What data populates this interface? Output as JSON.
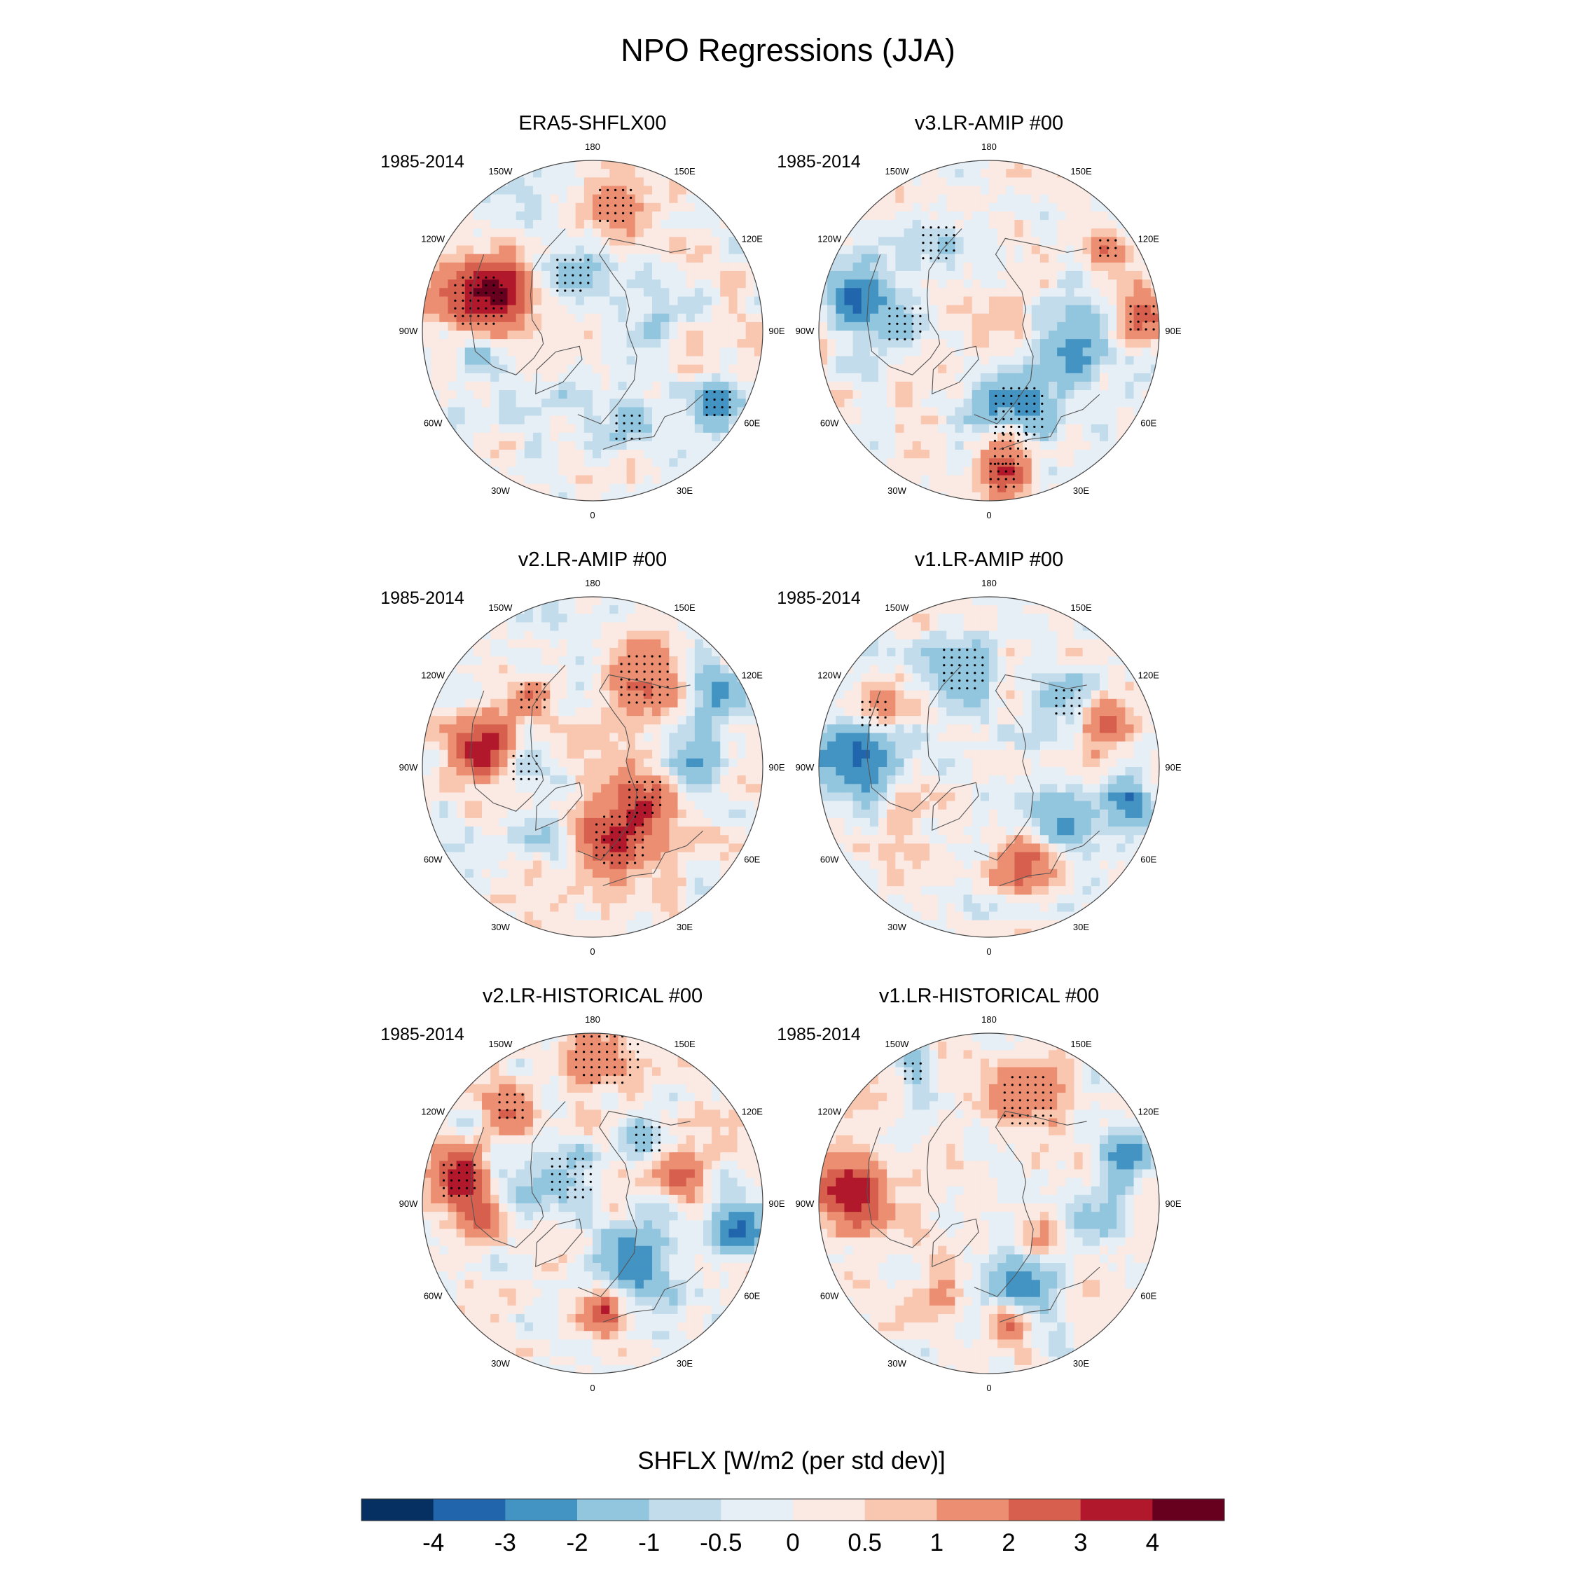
{
  "title": "NPO Regressions (JJA)",
  "colors": {
    "levels": [
      "#053061",
      "#2166ac",
      "#4393c3",
      "#92c5de",
      "#c3dceb",
      "#e6eff6",
      "#fbe9e3",
      "#f9c6b0",
      "#eb8e71",
      "#d6604d",
      "#b2182b",
      "#67001f"
    ],
    "coast": "#555555",
    "rim": "#444444",
    "stipple": "#000000"
  },
  "chart_data": {
    "type": "polar-map-panels",
    "variable_label": "SHFLX [W/m2 (per std dev)]",
    "colorbar": {
      "boundaries": [
        -4,
        -3,
        -2,
        -1,
        -0.5,
        0,
        0.5,
        1,
        2,
        3,
        4
      ],
      "tick_labels": [
        "-4",
        "-3",
        "-2",
        "-1",
        "-0.5",
        "0",
        "0.5",
        "1",
        "2",
        "3",
        "4"
      ]
    },
    "longitude_labels": [
      "180",
      "150E",
      "120E",
      "90E",
      "60E",
      "30E",
      "0",
      "30W",
      "60W",
      "90W",
      "120W",
      "150W"
    ],
    "panels": [
      {
        "title": "ERA5-SHFLX00",
        "period": "1985-2014",
        "features": [
          {
            "lon": -105,
            "r": 0.7,
            "size": 0.16,
            "value": 3.2,
            "stipple": true
          },
          {
            "lon": -115,
            "r": 0.55,
            "size": 0.12,
            "value": 2.2,
            "stipple": false
          },
          {
            "lon": -80,
            "r": 0.7,
            "size": 0.12,
            "value": -1.3,
            "stipple": false
          },
          {
            "lon": -160,
            "r": 0.35,
            "size": 0.12,
            "value": -1.7,
            "stipple": true
          },
          {
            "lon": 170,
            "r": 0.75,
            "size": 0.12,
            "value": 1.6,
            "stipple": true
          },
          {
            "lon": 90,
            "r": 0.4,
            "size": 0.12,
            "value": -1.0,
            "stipple": false
          },
          {
            "lon": 75,
            "r": 0.55,
            "size": 0.1,
            "value": 1.2,
            "stipple": false
          },
          {
            "lon": 60,
            "r": 0.85,
            "size": 0.1,
            "value": -3.2,
            "stipple": true
          },
          {
            "lon": 20,
            "r": 0.6,
            "size": 0.1,
            "value": -1.6,
            "stipple": true
          },
          {
            "lon": -20,
            "r": 0.45,
            "size": 0.1,
            "value": -0.9,
            "stipple": false
          },
          {
            "lon": -45,
            "r": 0.7,
            "size": 0.1,
            "value": -0.9,
            "stipple": false
          }
        ]
      },
      {
        "title": "v3.LR-AMIP  #00",
        "period": "1985-2014",
        "features": [
          {
            "lon": -105,
            "r": 0.8,
            "size": 0.12,
            "value": -3.0,
            "stipple": false
          },
          {
            "lon": -95,
            "r": 0.5,
            "size": 0.12,
            "value": -1.7,
            "stipple": true
          },
          {
            "lon": -150,
            "r": 0.6,
            "size": 0.12,
            "value": -1.5,
            "stipple": true
          },
          {
            "lon": 20,
            "r": 0.5,
            "size": 0.16,
            "value": -3.2,
            "stipple": true
          },
          {
            "lon": 10,
            "r": 0.7,
            "size": 0.12,
            "value": 3.0,
            "stipple": true
          },
          {
            "lon": 80,
            "r": 0.55,
            "size": 0.12,
            "value": -2.6,
            "stipple": false
          },
          {
            "lon": 95,
            "r": 0.9,
            "size": 0.1,
            "value": 2.5,
            "stipple": true
          },
          {
            "lon": 125,
            "r": 0.85,
            "size": 0.08,
            "value": 2.2,
            "stipple": true
          },
          {
            "lon": 5,
            "r": 0.85,
            "size": 0.1,
            "value": 1.5,
            "stipple": true
          },
          {
            "lon": -40,
            "r": 0.4,
            "size": 0.1,
            "value": 0.8,
            "stipple": false
          }
        ]
      },
      {
        "title": "v2.LR-AMIP  #00",
        "period": "1985-2014",
        "features": [
          {
            "lon": -100,
            "r": 0.65,
            "size": 0.14,
            "value": 3.3,
            "stipple": false
          },
          {
            "lon": -90,
            "r": 0.4,
            "size": 0.1,
            "value": -1.5,
            "stipple": true
          },
          {
            "lon": 150,
            "r": 0.6,
            "size": 0.16,
            "value": 2.0,
            "stipple": true
          },
          {
            "lon": 20,
            "r": 0.45,
            "size": 0.16,
            "value": 3.0,
            "stipple": true
          },
          {
            "lon": 60,
            "r": 0.35,
            "size": 0.12,
            "value": 2.5,
            "stipple": true
          },
          {
            "lon": 90,
            "r": 0.6,
            "size": 0.12,
            "value": -2.0,
            "stipple": false
          },
          {
            "lon": 120,
            "r": 0.85,
            "size": 0.12,
            "value": -2.0,
            "stipple": false
          },
          {
            "lon": -140,
            "r": 0.55,
            "size": 0.1,
            "value": 1.5,
            "stipple": true
          },
          {
            "lon": -40,
            "r": 0.5,
            "size": 0.1,
            "value": -1.0,
            "stipple": false
          }
        ]
      },
      {
        "title": "v1.LR-AMIP  #00",
        "period": "1985-2014",
        "features": [
          {
            "lon": -95,
            "r": 0.8,
            "size": 0.16,
            "value": -3.5,
            "stipple": false
          },
          {
            "lon": -115,
            "r": 0.75,
            "size": 0.1,
            "value": 2.0,
            "stipple": true
          },
          {
            "lon": -165,
            "r": 0.6,
            "size": 0.14,
            "value": -1.6,
            "stipple": true
          },
          {
            "lon": 20,
            "r": 0.6,
            "size": 0.12,
            "value": 2.5,
            "stipple": false
          },
          {
            "lon": 55,
            "r": 0.55,
            "size": 0.12,
            "value": -2.5,
            "stipple": false
          },
          {
            "lon": 75,
            "r": 0.85,
            "size": 0.1,
            "value": -3.0,
            "stipple": false
          },
          {
            "lon": 110,
            "r": 0.75,
            "size": 0.1,
            "value": 2.5,
            "stipple": false
          },
          {
            "lon": 130,
            "r": 0.6,
            "size": 0.1,
            "value": -1.5,
            "stipple": true
          },
          {
            "lon": -60,
            "r": 0.5,
            "size": 0.1,
            "value": 0.8,
            "stipple": false
          }
        ]
      },
      {
        "title": "v2.LR-HISTORICAL  #00",
        "period": "1985-2014",
        "features": [
          {
            "lon": 175,
            "r": 0.9,
            "size": 0.2,
            "value": 1.5,
            "stipple": true
          },
          {
            "lon": -140,
            "r": 0.75,
            "size": 0.1,
            "value": 1.6,
            "stipple": true
          },
          {
            "lon": -100,
            "r": 0.8,
            "size": 0.12,
            "value": 3.2,
            "stipple": true
          },
          {
            "lon": -100,
            "r": 0.4,
            "size": 0.1,
            "value": -1.6,
            "stipple": false
          },
          {
            "lon": -140,
            "r": 0.2,
            "size": 0.14,
            "value": -1.2,
            "stipple": true
          },
          {
            "lon": 35,
            "r": 0.45,
            "size": 0.14,
            "value": -3.0,
            "stipple": false
          },
          {
            "lon": 80,
            "r": 0.9,
            "size": 0.1,
            "value": -3.5,
            "stipple": false
          },
          {
            "lon": 5,
            "r": 0.65,
            "size": 0.08,
            "value": 3.5,
            "stipple": false
          },
          {
            "lon": -80,
            "r": 0.65,
            "size": 0.1,
            "value": 2.5,
            "stipple": false
          },
          {
            "lon": 140,
            "r": 0.5,
            "size": 0.1,
            "value": -1.6,
            "stipple": true
          },
          {
            "lon": 110,
            "r": 0.5,
            "size": 0.1,
            "value": 2.5,
            "stipple": false
          }
        ]
      },
      {
        "title": "v1.LR-HISTORICAL  #00",
        "period": "1985-2014",
        "features": [
          {
            "lon": -95,
            "r": 0.8,
            "size": 0.16,
            "value": 3.5,
            "stipple": false
          },
          {
            "lon": 160,
            "r": 0.65,
            "size": 0.16,
            "value": 1.8,
            "stipple": true
          },
          {
            "lon": 20,
            "r": 0.55,
            "size": 0.12,
            "value": -3.0,
            "stipple": false
          },
          {
            "lon": 10,
            "r": 0.7,
            "size": 0.1,
            "value": 3.0,
            "stipple": false
          },
          {
            "lon": 80,
            "r": 0.6,
            "size": 0.12,
            "value": -2.0,
            "stipple": false
          },
          {
            "lon": 110,
            "r": 0.85,
            "size": 0.1,
            "value": -2.5,
            "stipple": false
          },
          {
            "lon": 60,
            "r": 0.4,
            "size": 0.1,
            "value": 2.0,
            "stipple": false
          },
          {
            "lon": -150,
            "r": 0.9,
            "size": 0.08,
            "value": -1.2,
            "stipple": true
          },
          {
            "lon": -30,
            "r": 0.6,
            "size": 0.1,
            "value": 0.8,
            "stipple": false
          }
        ]
      }
    ]
  }
}
